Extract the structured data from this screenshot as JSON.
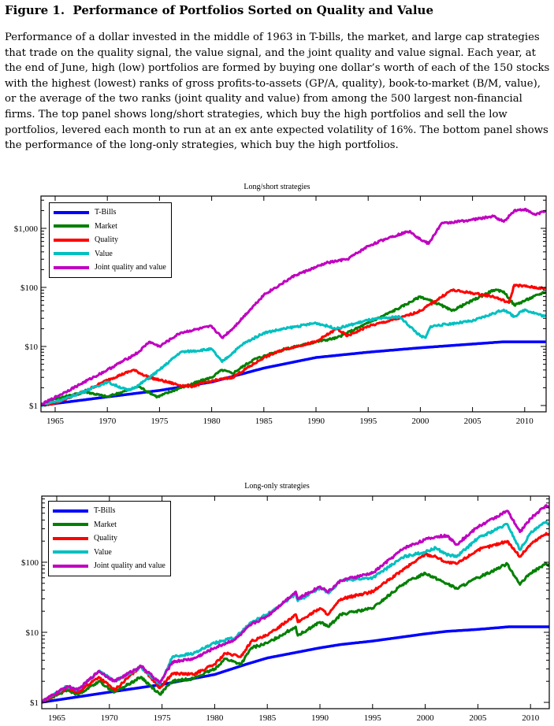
{
  "figure": {
    "title": "Figure 1.  Performance of Portfolios Sorted on Quality and Value",
    "caption": "Performance of a dollar invested in the middle of 1963 in T-bills, the market, and large cap strategies that trade on the quality signal, the value signal, and the joint quality and value signal. Each year, at the end of June, high (low) portfolios are formed by buying one dollar’s worth of each of the 150 stocks with the highest (lowest) ranks of gross profits-to-assets (GP/A, quality), book-to-market (B/M, value), or the average of the two ranks (joint quality and value) from among the 500 largest non-financial firms. The top panel shows long/short strategies, which buy the high portfolios and sell the low portfolios, levered each month to run at an ex ante expected volatility of 16%. The bottom panel shows the performance of the long-only strategies, which buy the high portfolios."
  },
  "chart_data": [
    {
      "type": "line",
      "title": "Long/short strategies",
      "xlabel": "",
      "ylabel": "",
      "xlim": [
        1963.6,
        2012.1
      ],
      "ylim": [
        0.88,
        3500
      ],
      "yscale": "log",
      "xticks": [
        "1965",
        "1970",
        "1975",
        "1980",
        "1985",
        "1990",
        "1995",
        "2000",
        "2005",
        "2010"
      ],
      "yticks": [
        {
          "value": 1,
          "label": "$1"
        },
        {
          "value": 10,
          "label": "$10"
        },
        {
          "value": 100,
          "label": "$100"
        },
        {
          "value": 1000,
          "label": "$1,000"
        }
      ],
      "grid": false,
      "legend": "top-left",
      "series": [
        {
          "name": "T-Bills",
          "color": "#0000ff",
          "x": [
            1963.5,
            1970,
            1975,
            1980,
            1985,
            1990,
            1995,
            2000,
            2005,
            2008,
            2012
          ],
          "y": [
            1,
            1.4,
            1.8,
            2.5,
            4.3,
            6.5,
            8,
            9.5,
            11,
            12,
            12
          ]
        },
        {
          "name": "Market",
          "color": "#008000",
          "x": [
            1963.5,
            1965,
            1968,
            1970,
            1973,
            1974.8,
            1977,
            1980,
            1981,
            1982,
            1984,
            1987,
            1990,
            1992,
            1995,
            1998,
            2000,
            2002,
            2003,
            2007,
            2008,
            2009,
            2012
          ],
          "y": [
            1,
            1.3,
            1.7,
            1.4,
            2.1,
            1.4,
            2,
            3,
            4,
            3.5,
            6,
            9,
            12,
            14,
            25,
            45,
            70,
            50,
            40,
            90,
            85,
            50,
            85
          ]
        },
        {
          "name": "Quality",
          "color": "#ff0000",
          "x": [
            1963.5,
            1965,
            1968,
            1970,
            1972.5,
            1974,
            1975,
            1977,
            1978,
            1980,
            1982,
            1985,
            1987,
            1990,
            1992,
            1993,
            1995,
            1998,
            2000,
            2003,
            2005,
            2007,
            2008.5,
            2009,
            2012
          ],
          "y": [
            1,
            1.1,
            1.8,
            2.7,
            4,
            3,
            2.7,
            2.2,
            2.1,
            2.6,
            3,
            6.5,
            9,
            12,
            20,
            15,
            22,
            30,
            40,
            90,
            80,
            70,
            55,
            110,
            95
          ]
        },
        {
          "name": "Value",
          "color": "#00c0c0",
          "x": [
            1963.5,
            1966,
            1968,
            1970,
            1972,
            1973,
            1975,
            1977,
            1980,
            1981,
            1983,
            1985,
            1987,
            1990,
            1992,
            1995,
            1998,
            2000,
            2000.5,
            2001,
            2005,
            2008,
            2009,
            2010,
            2012
          ],
          "y": [
            1,
            1.3,
            1.8,
            2.5,
            1.8,
            2.2,
            4,
            8,
            9,
            5.5,
            11,
            17,
            20,
            25,
            20,
            28,
            32,
            15,
            14,
            22,
            27,
            42,
            32,
            42,
            32
          ]
        },
        {
          "name": "Joint quality and value",
          "color": "#c000c0",
          "x": [
            1963.5,
            1966,
            1970,
            1973,
            1974,
            1975,
            1977,
            1980,
            1981,
            1982,
            1985,
            1988,
            1990,
            1991,
            1993,
            1995,
            1997,
            1999,
            2000,
            2000.8,
            2002,
            2005,
            2007,
            2008,
            2009,
            2010,
            2011,
            2012
          ],
          "y": [
            1,
            1.7,
            4,
            8,
            12,
            10,
            17,
            22,
            14,
            20,
            75,
            160,
            220,
            260,
            300,
            500,
            700,
            900,
            650,
            550,
            1200,
            1400,
            1600,
            1300,
            2000,
            2100,
            1700,
            2000
          ]
        }
      ]
    },
    {
      "type": "line",
      "title": "Long-only strategies",
      "xlabel": "",
      "ylabel": "",
      "xlim": [
        1963.6,
        2012.1
      ],
      "ylim": [
        0.9,
        880
      ],
      "yscale": "log",
      "xticks": [
        "1965",
        "1970",
        "1975",
        "1980",
        "1985",
        "1990",
        "1995",
        "2000",
        "2005",
        "2010"
      ],
      "yticks": [
        {
          "value": 1,
          "label": "$1"
        },
        {
          "value": 10,
          "label": "$10"
        },
        {
          "value": 100,
          "label": "$100"
        }
      ],
      "grid": false,
      "legend": "top-left",
      "series": [
        {
          "name": "T-Bills",
          "color": "#0000ff",
          "x": [
            1963.5,
            1970,
            1975,
            1980,
            1983,
            1985,
            1990,
            1992,
            1995,
            2000,
            2002,
            2005,
            2008,
            2012
          ],
          "y": [
            1,
            1.4,
            1.8,
            2.5,
            3.5,
            4.3,
            6,
            6.7,
            7.5,
            9.5,
            10.3,
            11,
            12,
            12
          ]
        },
        {
          "name": "Market",
          "color": "#008000",
          "x": [
            1963.5,
            1966,
            1967,
            1969,
            1970.5,
            1973,
            1974.8,
            1976,
            1978,
            1980,
            1981,
            1982.5,
            1983.5,
            1985,
            1987.7,
            1987.9,
            1990,
            1990.8,
            1992,
            1995,
            1998,
            2000,
            2002,
            2003,
            2005,
            2007.8,
            2009,
            2010,
            2011.5,
            2012
          ],
          "y": [
            1,
            1.5,
            1.3,
            2,
            1.4,
            2.3,
            1.3,
            2,
            2.2,
            3,
            4.2,
            3.5,
            6,
            7,
            12,
            9,
            14,
            12,
            18,
            22,
            50,
            70,
            50,
            42,
            60,
            95,
            48,
            70,
            95,
            85
          ]
        },
        {
          "name": "Quality",
          "color": "#ff0000",
          "x": [
            1963.5,
            1966,
            1967,
            1969,
            1970.5,
            1973,
            1974.8,
            1976,
            1978,
            1980,
            1981,
            1982.5,
            1983.5,
            1985,
            1987.7,
            1987.9,
            1990,
            1990.8,
            1992,
            1995,
            1998,
            2000,
            2001,
            2002,
            2003,
            2005,
            2007.8,
            2009,
            2010,
            2011.5,
            2012
          ],
          "y": [
            1,
            1.6,
            1.4,
            2.3,
            1.5,
            3.3,
            1.6,
            2.6,
            2.5,
            3.5,
            5,
            4.5,
            7.5,
            9,
            18,
            14,
            22,
            18,
            30,
            38,
            80,
            130,
            120,
            100,
            95,
            150,
            200,
            120,
            180,
            260,
            240
          ]
        },
        {
          "name": "Value",
          "color": "#00c0c0",
          "x": [
            1963.5,
            1966,
            1967,
            1969,
            1970.5,
            1973,
            1974.8,
            1976,
            1978,
            1980,
            1982,
            1983.5,
            1985,
            1987.7,
            1987.9,
            1990,
            1990.8,
            1992,
            1995,
            1998,
            2000,
            2001,
            2002,
            2003,
            2005,
            2007.8,
            2009,
            2010,
            2011.5,
            2012
          ],
          "y": [
            1,
            1.7,
            1.5,
            2.8,
            2,
            3.2,
            1.8,
            4.5,
            5,
            7,
            8.5,
            14,
            18,
            35,
            28,
            43,
            36,
            55,
            60,
            120,
            140,
            160,
            130,
            120,
            220,
            350,
            150,
            260,
            380,
            320
          ]
        },
        {
          "name": "Joint quality and value",
          "color": "#c000c0",
          "x": [
            1963.5,
            1966,
            1967,
            1969,
            1970.5,
            1973,
            1974.8,
            1976,
            1978,
            1980,
            1982,
            1983.5,
            1985,
            1987.7,
            1987.9,
            1990,
            1990.8,
            1992,
            1995,
            1998,
            2000,
            2001,
            2002,
            2003,
            2005,
            2007.8,
            2009,
            2010,
            2011.5,
            2012
          ],
          "y": [
            1,
            1.7,
            1.5,
            2.8,
            2,
            3.3,
            1.9,
            3.8,
            4.2,
            6,
            8,
            13,
            17,
            38,
            30,
            45,
            38,
            55,
            70,
            160,
            210,
            230,
            240,
            180,
            320,
            540,
            270,
            420,
            650,
            570
          ]
        }
      ]
    }
  ]
}
